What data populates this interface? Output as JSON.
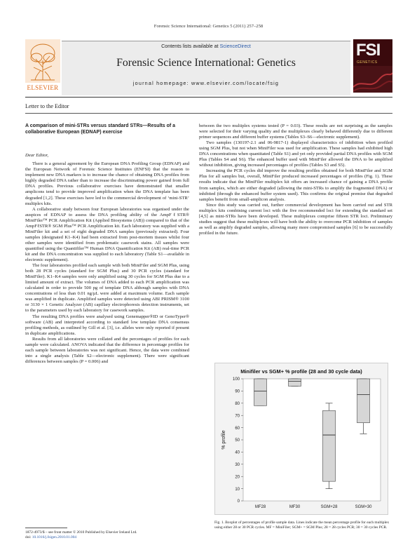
{
  "running_head": "Forensic Science International: Genetics 5 (2011) 257–258",
  "masthead": {
    "contents_prefix": "Contents lists available at ",
    "contents_link": "ScienceDirect",
    "journal_name": "Forensic Science International: Genetics",
    "homepage_prefix": "journal homepage: ",
    "homepage_url": "www.elsevier.com/locate/fsig",
    "publisher": "ELSEVIER",
    "cover_title": "FSI",
    "cover_subtitle": "GENETICS"
  },
  "section_label": "Letter to the Editor",
  "article": {
    "title": "A comparison of mini-STRs versus standard STRs—Results of a collaborative European (EDNAP) exercise",
    "salutation": "Dear Editor,",
    "left_paragraphs": [
      "There is a general agreement by the European DNA Profiling Group (EDNAP) and the European Network of Forensic Science Institutes (ENFSI) that the reason to implement new DNA markers is to increase the chance of obtaining DNA profiles from highly degraded DNA rather than to increase the discriminating power gained from full DNA profiles. Previous collaborative exercises have demonstrated that smaller amplicons tend to provide improved amplification when the DNA template has been degraded [1,2]. These exercises have led to the commercial development of ‘mini-STR’ multiplex kits.",
      "A collaborative study between four European laboratories was organised under the auspices of EDNAP to assess the DNA profiling ability of the AmpFℓSTR® MiniFiler™ PCR Amplification Kit (Applied Biosystems (AB)) compared to that of the AmpFℓSTR® SGM Plus™ PCR Amplification kit. Each laboratory was supplied with a MiniFiler kit and a set of eight degraded DNA samples (previously extracted). Four samples (designated K1–K4) had been extracted from post-mortem tissues whilst four other samples were identified from problematic casework stains. All samples were quantified using the Quantifiler™ Human DNA Quantification Kit (AB) real-time PCR kit and the DNA concentration was supplied to each laboratory (Table S1—available in electronic supplement).",
      "The four laboratories profiled each sample with both MiniFiler and SGM Plus, using both 28 PCR cycles (standard for SGM Plus) and 30 PCR cycles (standard for MiniFiler). K1–K4 samples were only amplified using 30 cycles for SGM Plus due to a limited amount of extract. The volumes of DNA added to each PCR amplification was calculated in order to provide 500 pg of template DNA although samples with DNA concentrations of less than 0.01 ng/µL were added at maximum volume. Each sample was amplified in duplicate. Amplified samples were detected using ABI PRISM® 3100 or 3130 × 1 Genetic Analyzer (AB) capillary electrophoresis detection instruments, set to the parameters used by each laboratory for casework samples.",
      "The resulting DNA profiles were analysed using Genemapper®ID or GenoTyper® software (AB) and interpreted according to standard low template DNA consensus profiling methods, as outlined by Gill et al. [3], i.e. alleles were only reported if present in duplicate amplifications.",
      "Results from all laboratories were collated and the percentages of profiles for each sample were calculated. ANOVA indicated that the difference in percentage profiles for each sample between laboratories was not significant. Hence, the data were combined into a single analysis (Table S2—electronic supplement). There were significant differences between samples (P = 0.006) and"
    ],
    "right_paragraphs": [
      "between the two multiplex systems tested (P = 0.03). These results are not surprising as the samples were selected for their varying quality and the multiplexes clearly behaved differently due to different primer sequences and different buffer systems (Tables S3–S6—electronic supplement).",
      "Two samples (130197-2.1 and 06-9817-1) displayed characteristics of inhibition when profiled using SGM Plus, but not when MiniFiler was used for amplification. These samples had exhibited high DNA concentrations when quantitated (Table S1) and yet only provided partial DNA profiles with SGM Plus (Tables S4 and S6). The enhanced buffer used with MiniFiler allowed the DNA to be amplified without inhibition, giving increased percentages of profiles (Tables S3 and S5).",
      "Increasing the PCR cycles did improve the resulting profiles obtained for both MiniFiler and SGM Plus for all samples but, overall, MiniFiler produced increased percentages of profiles (Fig. 1). These results indicate that the MiniFiler multiplex kit offers an increased chance of gaining a DNA profile from samples, which are either degraded (allowing the mini-STRs to amplify the fragmented DNA) or inhibited (through the enhanced buffer system used). This confirms the original premise that degraded samples benefit from small-amplicon analysis.",
      "Since this study was carried out, further commercial development has been carried out and STR multiplex kits combining current loci with the five recommended loci for extending the standard set [4,5] as mini-STRs have been developed. These multiplexes comprise fifteen STR loci. Preliminary studies suggest that these multiplexes will have both the ability to overcome PCR inhibition of samples as well as amplify degraded samples, allowing many more compromised samples [6] to be successfully profiled in the future."
    ]
  },
  "chart_data": {
    "type": "boxplot",
    "title": "Minifiler vs SGM+ % profile (28 and 30 cycle data)",
    "xlabel": "",
    "ylabel": "% profile",
    "ylim": [
      0,
      100
    ],
    "yticks": [
      0,
      10,
      20,
      30,
      40,
      50,
      60,
      70,
      80,
      90,
      100
    ],
    "categories": [
      "MF28",
      "MF30",
      "SGM+28",
      "SGM+30"
    ],
    "boxes": [
      {
        "category": "MF28",
        "min": 78,
        "q1": 78,
        "median": 90,
        "q3": 100,
        "max": 100
      },
      {
        "category": "MF30",
        "min": 94,
        "q1": 94,
        "median": 98,
        "q3": 100,
        "max": 100
      },
      {
        "category": "SGM+28",
        "min": 10,
        "q1": 16,
        "median": 54,
        "q3": 74,
        "max": 80
      },
      {
        "category": "SGM+30",
        "min": 55,
        "q1": 64,
        "median": 87,
        "q3": 100,
        "max": 100
      }
    ],
    "grid": false,
    "box_color": "#d6d6d6",
    "caption": "Fig. 1. Boxplot of percentages of profile sample data. Lines indicate the mean percentage profile for each multiplex using either 28 or 30 PCR cycles. MF = MiniFiler; SGM+ = SGM Plus; 28 = 28 cycles PCR; 30 = 30 cycles PCR."
  },
  "footer": {
    "line1": "1872-4973/$ – see front matter © 2010 Published by Elsevier Ireland Ltd.",
    "doi_prefix": "doi:",
    "doi": "10.1016/j.fsigen.2010.01.004"
  }
}
